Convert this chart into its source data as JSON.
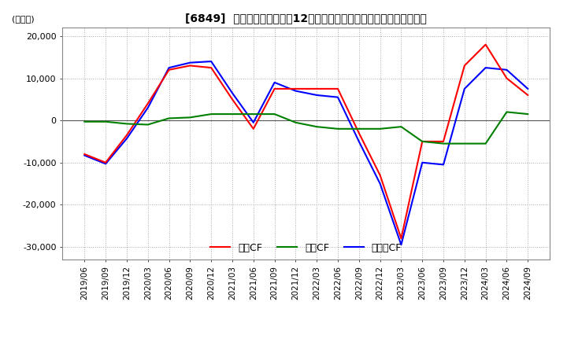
{
  "title": "[6849]  キャッシュフローの12か月移動合計の対前年同期増減額の推移",
  "ylabel": "(百万円)",
  "ylim": [
    -33000,
    22000
  ],
  "yticks": [
    -30000,
    -20000,
    -10000,
    0,
    10000,
    20000
  ],
  "background_color": "#ffffff",
  "grid_color": "#aaaaaa",
  "dates": [
    "2019/06",
    "2019/09",
    "2019/12",
    "2020/03",
    "2020/06",
    "2020/09",
    "2020/12",
    "2021/03",
    "2021/06",
    "2021/09",
    "2021/12",
    "2022/03",
    "2022/06",
    "2022/09",
    "2022/12",
    "2023/03",
    "2023/06",
    "2023/09",
    "2023/12",
    "2024/03",
    "2024/06",
    "2024/09"
  ],
  "operating_cf": [
    -8000,
    -10000,
    -3500,
    4000,
    12000,
    13000,
    12500,
    5000,
    -2000,
    7500,
    7500,
    7500,
    7500,
    -3000,
    -13000,
    -28000,
    -5000,
    -5000,
    13000,
    18000,
    10000,
    6000
  ],
  "investing_cf": [
    -300,
    -300,
    -800,
    -1000,
    500,
    700,
    1500,
    1500,
    1500,
    1500,
    -500,
    -1500,
    -2000,
    -2000,
    -2000,
    -1500,
    -5000,
    -5500,
    -5500,
    -5500,
    2000,
    1500
  ],
  "free_cf": [
    -8300,
    -10300,
    -4300,
    3000,
    12500,
    13700,
    14000,
    6500,
    -500,
    9000,
    7000,
    6000,
    5500,
    -5000,
    -15000,
    -29500,
    -10000,
    -10500,
    7500,
    12500,
    12000,
    7500
  ],
  "operating_color": "#ff0000",
  "investing_color": "#008000",
  "free_cf_color": "#0000ff",
  "legend_labels": [
    "営業CF",
    "投資CF",
    "フリーCF"
  ]
}
